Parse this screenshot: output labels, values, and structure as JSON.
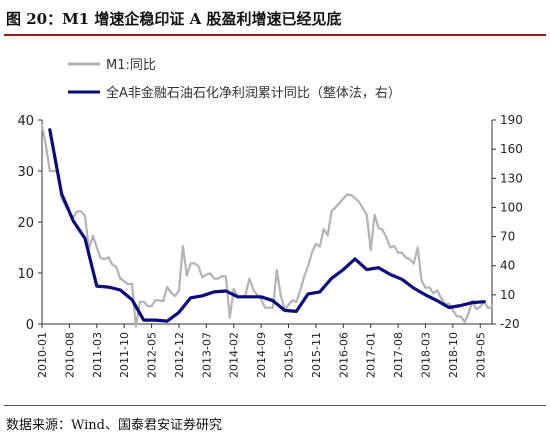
{
  "figure_title": "图 20：M1 增速企稳印证 A 股盈利增速已经见底",
  "source_note": "数据来源：Wind、国泰君安证券研究",
  "colors": {
    "m1": "#b3b3b3",
    "profit": "#0a0a7a",
    "axis": "#333333",
    "accent": "#8b1d1d"
  },
  "chart_data": {
    "type": "line",
    "title": "",
    "xlabel": "",
    "x_ticks": [
      "2010-01",
      "2010-08",
      "2011-03",
      "2011-10",
      "2012-05",
      "2012-12",
      "2013-07",
      "2014-02",
      "2014-09",
      "2015-04",
      "2015-11",
      "2016-06",
      "2017-01",
      "2017-08",
      "2018-03",
      "2018-10",
      "2019-05"
    ],
    "left_axis": {
      "ylim": [
        0,
        40
      ],
      "ticks": [
        0,
        10,
        20,
        30,
        40
      ]
    },
    "right_axis": {
      "ylim": [
        -20,
        190
      ],
      "ticks": [
        -20,
        10,
        40,
        70,
        100,
        130,
        160,
        190
      ]
    },
    "legend_position": "top",
    "grid": false,
    "series": [
      {
        "name": "M1:同比",
        "axis": "left",
        "x": [
          "2010-01",
          "2010-02",
          "2010-03",
          "2010-04",
          "2010-05",
          "2010-06",
          "2010-07",
          "2010-08",
          "2010-09",
          "2010-10",
          "2010-11",
          "2010-12",
          "2011-01",
          "2011-02",
          "2011-03",
          "2011-04",
          "2011-05",
          "2011-06",
          "2011-07",
          "2011-08",
          "2011-09",
          "2011-10",
          "2011-11",
          "2011-12",
          "2012-01",
          "2012-02",
          "2012-03",
          "2012-04",
          "2012-05",
          "2012-06",
          "2012-07",
          "2012-08",
          "2012-09",
          "2012-10",
          "2012-11",
          "2012-12",
          "2013-01",
          "2013-02",
          "2013-03",
          "2013-04",
          "2013-05",
          "2013-06",
          "2013-07",
          "2013-08",
          "2013-09",
          "2013-10",
          "2013-11",
          "2013-12",
          "2014-01",
          "2014-02",
          "2014-03",
          "2014-04",
          "2014-05",
          "2014-06",
          "2014-07",
          "2014-08",
          "2014-09",
          "2014-10",
          "2014-11",
          "2014-12",
          "2015-01",
          "2015-02",
          "2015-03",
          "2015-04",
          "2015-05",
          "2015-06",
          "2015-07",
          "2015-08",
          "2015-09",
          "2015-10",
          "2015-11",
          "2015-12",
          "2016-01",
          "2016-02",
          "2016-03",
          "2016-04",
          "2016-05",
          "2016-06",
          "2016-07",
          "2016-08",
          "2016-09",
          "2016-10",
          "2016-11",
          "2016-12",
          "2017-01",
          "2017-02",
          "2017-03",
          "2017-04",
          "2017-05",
          "2017-06",
          "2017-07",
          "2017-08",
          "2017-09",
          "2017-10",
          "2017-11",
          "2017-12",
          "2018-01",
          "2018-02",
          "2018-03",
          "2018-04",
          "2018-05",
          "2018-06",
          "2018-07",
          "2018-08",
          "2018-09",
          "2018-10",
          "2018-11",
          "2018-12",
          "2019-01",
          "2019-02",
          "2019-03",
          "2019-04",
          "2019-05",
          "2019-06",
          "2019-07",
          "2019-08"
        ],
        "values": [
          39,
          35,
          30,
          30,
          29.9,
          24.6,
          23.2,
          21.9,
          20.9,
          22.1,
          22.1,
          21.2,
          14.7,
          17.3,
          15.0,
          12.9,
          12.7,
          13.1,
          11.6,
          11.2,
          8.9,
          8.4,
          7.8,
          7.9,
          -0.5,
          4.3,
          4.4,
          3.5,
          3.5,
          4.7,
          4.6,
          4.5,
          7.3,
          6.1,
          5.5,
          6.5,
          15.3,
          9.5,
          11.9,
          11.9,
          11.3,
          9.1,
          9.7,
          9.9,
          8.9,
          8.9,
          9.4,
          9.3,
          1.2,
          6.9,
          5.4,
          5.3,
          5.7,
          8.9,
          6.7,
          5.7,
          4.8,
          3.2,
          3.2,
          3.2,
          10.6,
          5.6,
          2.9,
          3.7,
          4.7,
          4.3,
          6.6,
          9.3,
          11.4,
          14.0,
          15.7,
          15.2,
          18.6,
          17.4,
          22.1,
          22.9,
          23.7,
          24.6,
          25.4,
          25.3,
          24.7,
          23.9,
          22.7,
          21.4,
          14.5,
          21.4,
          18.8,
          18.5,
          17.0,
          15.0,
          15.3,
          14.0,
          14.0,
          13.0,
          12.7,
          11.8,
          15.0,
          8.5,
          7.1,
          7.2,
          6.0,
          6.6,
          5.1,
          3.9,
          4.0,
          2.7,
          1.5,
          1.5,
          0.4,
          2.0,
          4.6,
          2.9,
          3.4,
          4.4,
          3.1,
          3.4
        ]
      },
      {
        "name": "全A非金融石油石化净利润累计同比（整体法，右）",
        "axis": "right",
        "x": [
          "2010-03",
          "2010-06",
          "2010-09",
          "2010-12",
          "2011-03",
          "2011-06",
          "2011-09",
          "2011-12",
          "2012-03",
          "2012-06",
          "2012-09",
          "2012-12",
          "2013-03",
          "2013-06",
          "2013-09",
          "2013-12",
          "2014-03",
          "2014-06",
          "2014-09",
          "2014-12",
          "2015-03",
          "2015-06",
          "2015-09",
          "2015-12",
          "2016-03",
          "2016-06",
          "2016-09",
          "2016-12",
          "2017-03",
          "2017-06",
          "2017-09",
          "2017-12",
          "2018-03",
          "2018-06",
          "2018-09",
          "2018-12",
          "2019-03",
          "2019-06"
        ],
        "values": [
          180,
          114,
          86,
          68,
          19,
          18,
          15,
          5,
          -16,
          -16,
          -17,
          -8,
          7,
          9,
          13,
          14,
          8,
          8,
          8,
          4,
          -6,
          -7,
          11,
          13,
          27,
          36,
          47,
          36,
          38,
          31,
          26,
          17,
          10,
          4,
          -3,
          -1,
          2,
          3
        ]
      }
    ]
  }
}
